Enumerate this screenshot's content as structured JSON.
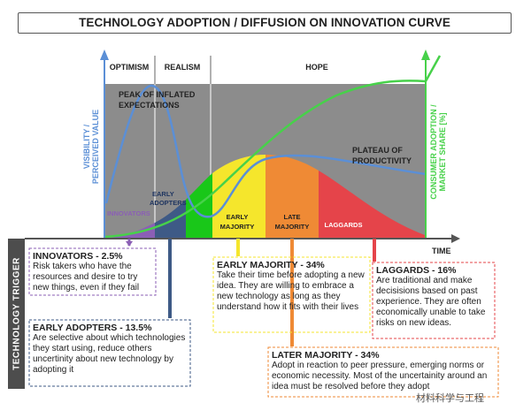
{
  "title": "TECHNOLOGY ADOPTION / DIFFUSION ON INNOVATION CURVE",
  "phases": {
    "optimism": "OPTIMISM",
    "realism": "REALISM",
    "hope": "HOPE"
  },
  "peak_label": [
    "PEAK OF INFLATED",
    "EXPECTATIONS"
  ],
  "plateau_label": [
    "PLATEAU OF",
    "PRODUCTIVITY"
  ],
  "y_left_label": [
    "VISIBILITY /",
    "PERCEIVED VALUE"
  ],
  "y_right_label": [
    "CONSUMER ADOPTION /",
    "MARKET SHARE [%]"
  ],
  "x_label": "TIME",
  "trigger_label": "TECHNOLOGY TRIGGER",
  "segments": {
    "innovators": "INNOVATORS",
    "early_adopters": [
      "EARLY",
      "ADOPTERS"
    ],
    "early_majority": [
      "EARLY",
      "MAJORITY"
    ],
    "late_majority": [
      "LATE",
      "MAJORITY"
    ],
    "laggards": "LAGGARDS"
  },
  "colors": {
    "innovators": "#8b5fb5",
    "early_adopters": "#3e5a86",
    "green": "#19c719",
    "early_majority": "#f5e62c",
    "late_majority": "#ef8a35",
    "laggards": "#e5444a",
    "hype_curve": "#5b8fd6",
    "adoption_curve": "#47d14a",
    "bg": "#8c8c8c"
  },
  "boxes": {
    "innovators": {
      "heading": "INNOVATORS - 2.5%",
      "text": "Risk takers who have the resources and desire to try new things, even if they fail"
    },
    "early_adopters": {
      "heading": "EARLY ADOPTERS - 13.5%",
      "text": "Are selective about which technologies they start using, reduce others uncertinity about new technology by adopting it"
    },
    "early_majority": {
      "heading": "EARLY MAJORITY - 34%",
      "text": "Take their time before adopting a new idea. They are willing to embrace a new technology as long as they understand how it fits with their lives"
    },
    "later_majority": {
      "heading": "LATER MAJORITY - 34%",
      "text": "Adopt in reaction to peer pressure, emerging norms or economic necessity. Most of the uncertainity around an idea must be resolved before they adopt"
    },
    "laggards": {
      "heading": "LAGGARDS - 16%",
      "text": "Are traditional and make decisisions based on past experience. They are often economically unable to take risks on new ideas."
    }
  },
  "watermark": "材料科学与工程"
}
